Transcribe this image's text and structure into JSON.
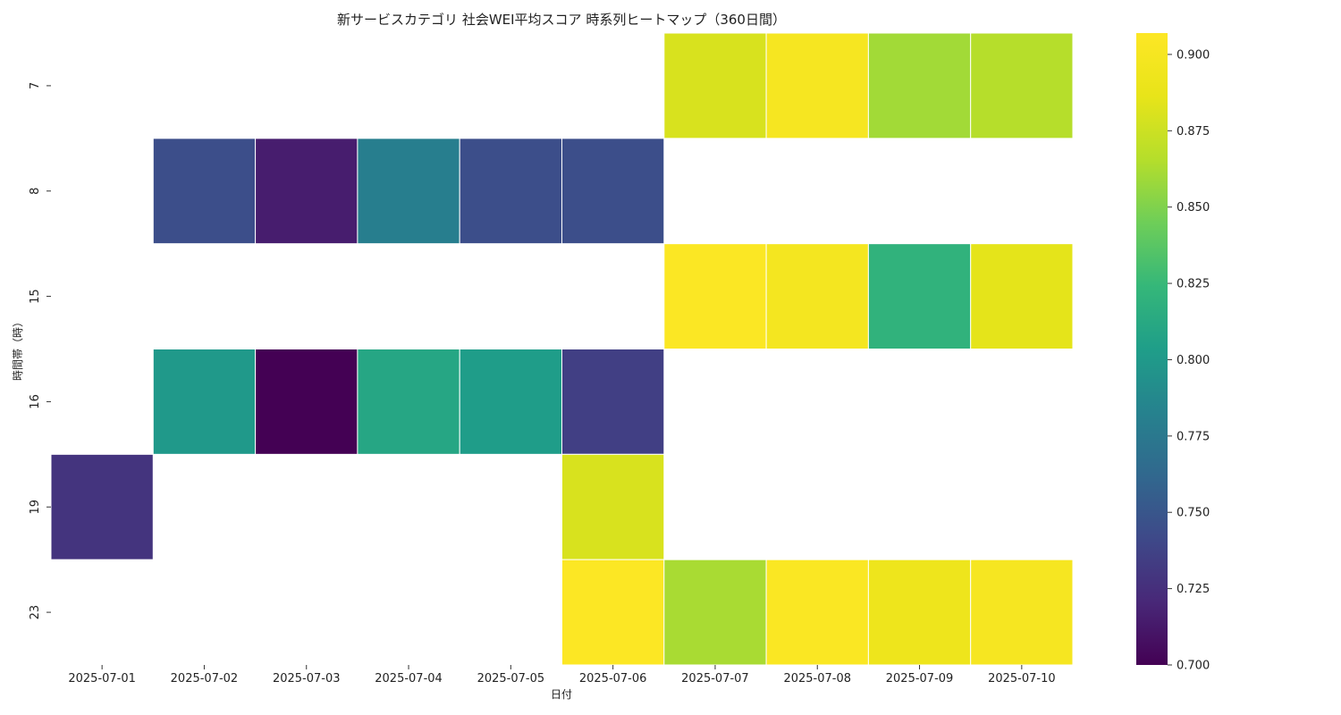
{
  "chart_data": {
    "type": "heatmap",
    "title": "新サービスカテゴリ 社会WEI平均スコア 時系列ヒートマップ（360日間）",
    "xlabel": "日付",
    "ylabel": "時間帯（時）",
    "x_categories": [
      "2025-07-01",
      "2025-07-02",
      "2025-07-03",
      "2025-07-04",
      "2025-07-05",
      "2025-07-06",
      "2025-07-07",
      "2025-07-08",
      "2025-07-09",
      "2025-07-10"
    ],
    "y_categories": [
      "7",
      "8",
      "15",
      "16",
      "19",
      "23"
    ],
    "values": [
      [
        null,
        null,
        null,
        null,
        null,
        null,
        0.88,
        0.9,
        0.86,
        0.866
      ],
      [
        null,
        0.745,
        0.715,
        0.78,
        0.745,
        0.745,
        null,
        null,
        null,
        null
      ],
      [
        null,
        null,
        null,
        null,
        null,
        null,
        0.905,
        0.898,
        0.82,
        0.885
      ],
      [
        null,
        0.8,
        0.7,
        0.81,
        0.803,
        0.735,
        null,
        null,
        null,
        null
      ],
      [
        0.728,
        null,
        null,
        null,
        null,
        0.88,
        null,
        null,
        null,
        null
      ],
      [
        null,
        null,
        null,
        null,
        null,
        0.906,
        0.862,
        0.904,
        0.892,
        0.9
      ]
    ],
    "colorscale": "viridis",
    "vmin": 0.7,
    "vmax": 0.907,
    "colorbar_ticks": [
      "0.700",
      "0.725",
      "0.750",
      "0.775",
      "0.800",
      "0.825",
      "0.850",
      "0.875",
      "0.900"
    ],
    "grid": false,
    "colorbar_position": "right"
  }
}
